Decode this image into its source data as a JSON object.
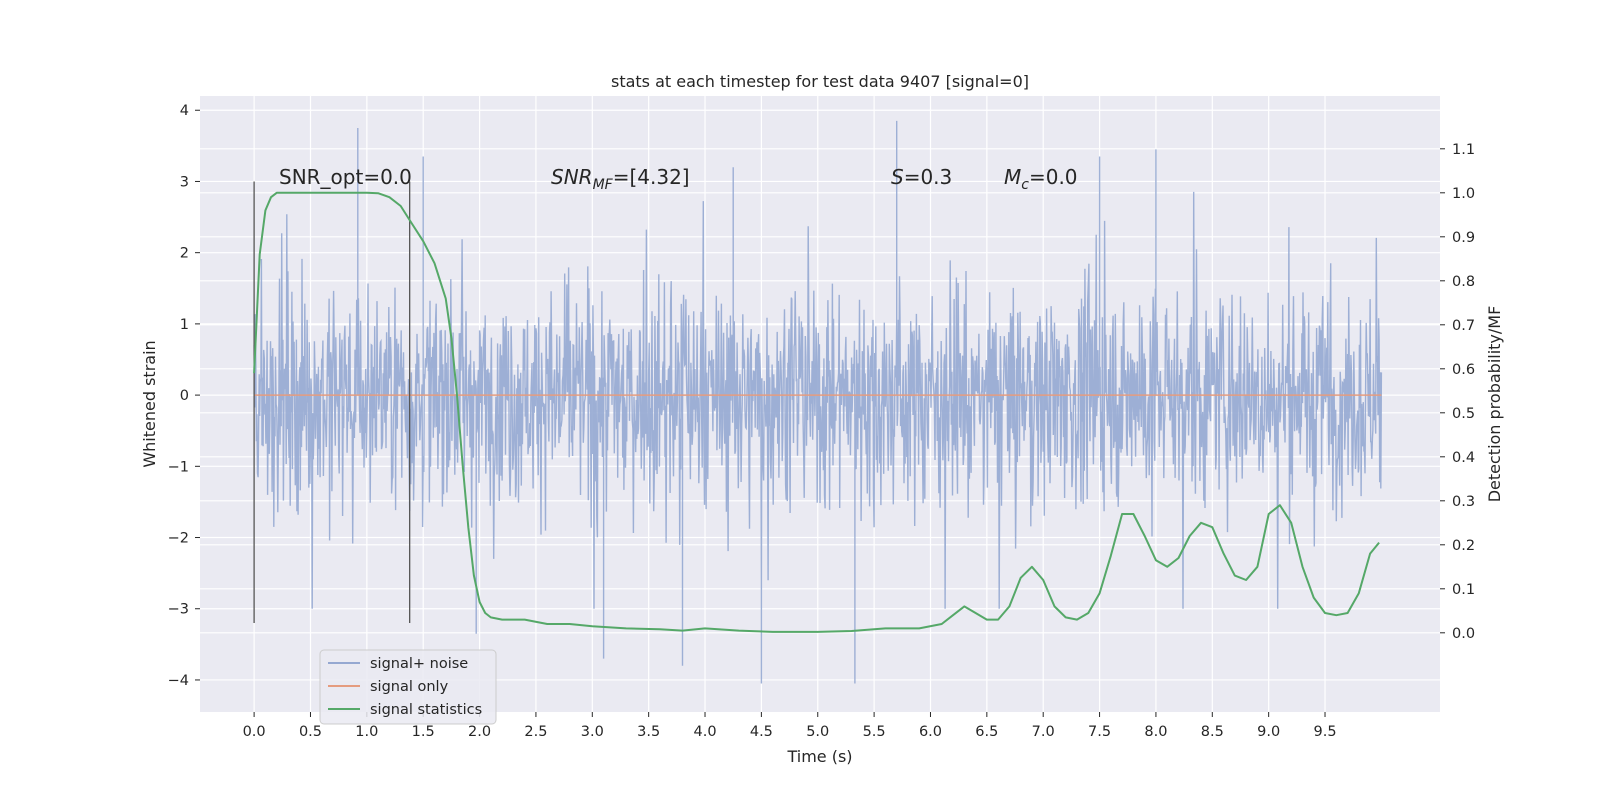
{
  "chart_data": {
    "type": "line",
    "title": "stats at each timestep for test data 9407 [signal=0]",
    "xlabel": "Time (s)",
    "ylabel": "Whitened strain",
    "ylabel_right": "Detection probability/MF",
    "xlim": [
      -0.48,
      10.52
    ],
    "ylim": [
      -4.45,
      4.2
    ],
    "ylim_right": [
      -0.18,
      1.22
    ],
    "x_ticks": [
      "0.0",
      "0.5",
      "1.0",
      "1.5",
      "2.0",
      "2.5",
      "3.0",
      "3.5",
      "4.0",
      "4.5",
      "5.0",
      "5.5",
      "6.0",
      "6.5",
      "7.0",
      "7.5",
      "8.0",
      "8.5",
      "9.0",
      "9.5"
    ],
    "y_ticks": [
      "4",
      "3",
      "2",
      "1",
      "0",
      "−1",
      "−2",
      "−3",
      "−4"
    ],
    "y_ticks_right": [
      "1.1",
      "1.0",
      "0.9",
      "0.8",
      "0.7",
      "0.6",
      "0.5",
      "0.4",
      "0.3",
      "0.2",
      "0.1",
      "0.0"
    ],
    "grid": true,
    "legend_position": "lower-left",
    "legend": [
      "signal+ noise",
      "signal only",
      "signal statistics"
    ],
    "annotations": {
      "snr_opt": "SNR_opt=0.0",
      "snr_mf_label": "SNR",
      "snr_mf_sub": "MF",
      "snr_mf_value": "=[4.32]",
      "s_label": "S",
      "s_value": "=0.3",
      "mc_label": "M",
      "mc_sub": "c",
      "mc_value": "=0.0"
    },
    "vertical_markers_x": [
      0.0,
      1.38
    ],
    "series": [
      {
        "name": "signal+ noise",
        "axis": "left",
        "color": "#95a8d1",
        "t_range": [
          0.0,
          10.0
        ],
        "typical_envelope": [
          -1.5,
          1.6
        ],
        "notable_peaks": [
          {
            "x": 0.92,
            "y": 3.75
          },
          {
            "x": 1.5,
            "y": 3.35
          },
          {
            "x": 4.25,
            "y": 3.2
          },
          {
            "x": 5.7,
            "y": 3.85
          },
          {
            "x": 7.5,
            "y": 3.35
          },
          {
            "x": 8.0,
            "y": 3.45
          },
          {
            "x": 3.1,
            "y": -3.7
          },
          {
            "x": 3.8,
            "y": -3.8
          },
          {
            "x": 4.5,
            "y": -4.05
          },
          {
            "x": 5.33,
            "y": -4.05
          },
          {
            "x": 1.97,
            "y": -3.35
          }
        ]
      },
      {
        "name": "signal only",
        "axis": "left",
        "color": "#e59c7f",
        "x": [
          0.0,
          10.0
        ],
        "y": [
          0.0,
          0.0
        ]
      },
      {
        "name": "signal statistics",
        "axis": "right",
        "color": "#55a868",
        "x": [
          0.0,
          0.05,
          0.1,
          0.15,
          0.2,
          0.3,
          0.5,
          0.7,
          0.9,
          1.0,
          1.1,
          1.2,
          1.3,
          1.4,
          1.5,
          1.6,
          1.7,
          1.75,
          1.8,
          1.85,
          1.9,
          1.95,
          2.0,
          2.05,
          2.1,
          2.2,
          2.4,
          2.6,
          2.8,
          3.0,
          3.3,
          3.6,
          3.8,
          4.0,
          4.3,
          4.6,
          5.0,
          5.3,
          5.6,
          5.9,
          6.1,
          6.2,
          6.3,
          6.4,
          6.5,
          6.6,
          6.7,
          6.8,
          6.9,
          7.0,
          7.1,
          7.2,
          7.3,
          7.4,
          7.5,
          7.6,
          7.7,
          7.8,
          7.9,
          8.0,
          8.1,
          8.2,
          8.3,
          8.4,
          8.5,
          8.6,
          8.7,
          8.8,
          8.9,
          9.0,
          9.1,
          9.2,
          9.3,
          9.4,
          9.5,
          9.6,
          9.7,
          9.8,
          9.9,
          9.98
        ],
        "y": [
          0.59,
          0.86,
          0.96,
          0.99,
          1.0,
          1.0,
          1.0,
          1.0,
          1.0,
          1.0,
          0.999,
          0.99,
          0.97,
          0.93,
          0.89,
          0.84,
          0.76,
          0.67,
          0.54,
          0.38,
          0.24,
          0.13,
          0.07,
          0.045,
          0.035,
          0.03,
          0.03,
          0.02,
          0.02,
          0.015,
          0.01,
          0.008,
          0.005,
          0.01,
          0.005,
          0.002,
          0.002,
          0.004,
          0.01,
          0.01,
          0.02,
          0.04,
          0.06,
          0.045,
          0.03,
          0.03,
          0.06,
          0.125,
          0.15,
          0.12,
          0.06,
          0.035,
          0.03,
          0.045,
          0.09,
          0.175,
          0.27,
          0.27,
          0.22,
          0.165,
          0.15,
          0.17,
          0.22,
          0.25,
          0.24,
          0.18,
          0.13,
          0.12,
          0.15,
          0.27,
          0.29,
          0.25,
          0.15,
          0.08,
          0.045,
          0.04,
          0.045,
          0.09,
          0.18,
          0.205
        ]
      }
    ]
  }
}
